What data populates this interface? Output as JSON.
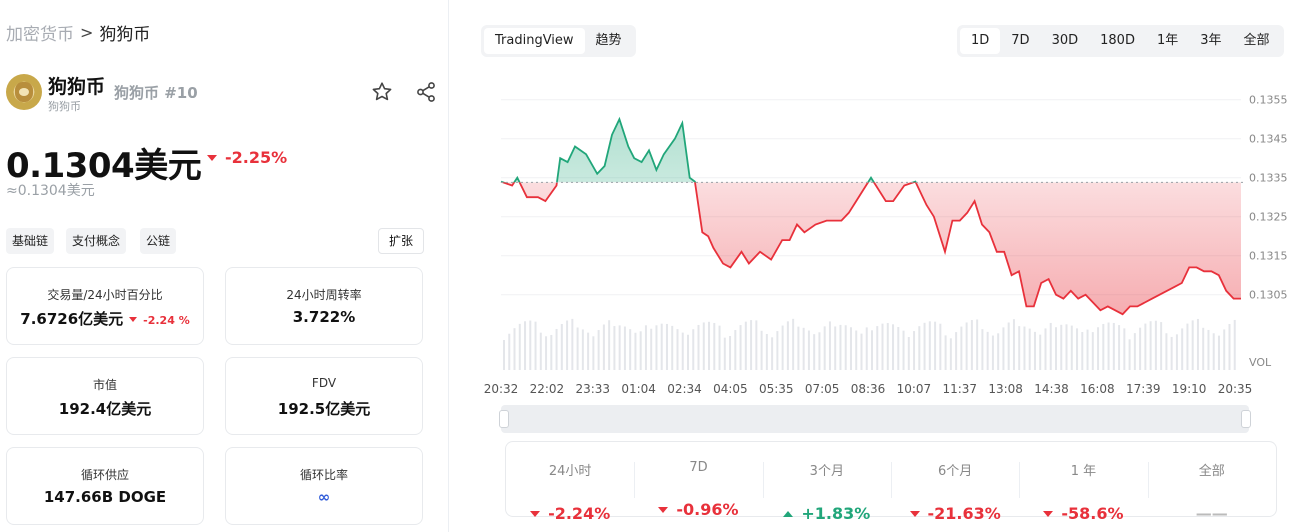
{
  "breadcrumb": {
    "root": "加密货币",
    "separator": ">",
    "current": "狗狗币"
  },
  "coin": {
    "name": "狗狗币",
    "sub_name": "狗狗币",
    "rank": "狗狗币 #10",
    "price": "0.1304美元",
    "change_24h": "-2.25%",
    "price_approx": "≈0.1304美元",
    "icons": {
      "favorite": "star-icon",
      "share": "share-icon"
    }
  },
  "tags": [
    "基础链",
    "支付概念",
    "公链"
  ],
  "expand_label": "扩张",
  "stats": {
    "volume_ratio": {
      "label": "交易量/24小时百分比",
      "value": "7.6726亿美元",
      "change": "-2.24 %"
    },
    "turnover": {
      "label": "24小时周转率",
      "value": "3.722%"
    },
    "market_cap": {
      "label": "市值",
      "value": "192.4亿美元"
    },
    "fdv": {
      "label": "FDV",
      "value": "192.5亿美元"
    },
    "circulating_supply": {
      "label": "循环供应",
      "value": "147.66B DOGE"
    },
    "circulating_ratio": {
      "label": "循环比率",
      "value": "∞"
    }
  },
  "chart_tabs": [
    "TradingView",
    "趋势"
  ],
  "ranges": [
    "1D",
    "7D",
    "30D",
    "180D",
    "1年",
    "3年",
    "全部"
  ],
  "active_range": "1D",
  "performance": [
    {
      "label": "24小时",
      "value": "-2.24%",
      "dir": "neg"
    },
    {
      "label": "7D",
      "value": "-0.96%",
      "dir": "neg"
    },
    {
      "label": "3个月",
      "value": "+1.83%",
      "dir": "pos"
    },
    {
      "label": "6个月",
      "value": "-21.63%",
      "dir": "neg"
    },
    {
      "label": "1 年",
      "value": "-58.6%",
      "dir": "neg"
    },
    {
      "label": "全部",
      "value": "——",
      "dir": "none"
    }
  ],
  "colors": {
    "negative": "#e8313b",
    "positive": "#21a67a"
  },
  "chart_data": {
    "type": "area",
    "x_ticks": [
      "20:32",
      "22:02",
      "23:33",
      "01:04",
      "02:34",
      "04:05",
      "05:35",
      "07:05",
      "08:36",
      "10:07",
      "11:37",
      "13:08",
      "14:38",
      "16:08",
      "17:39",
      "19:10",
      "20:35"
    ],
    "y_ticks": [
      "0.1355",
      "0.1345",
      "0.1335",
      "0.1325",
      "0.1315",
      "0.1305"
    ],
    "ylabel_volume": "VOL",
    "baseline": 0.13338,
    "ylim": [
      0.1298,
      0.1358
    ],
    "x_fraction": [
      0,
      0.015,
      0.022,
      0.035,
      0.05,
      0.06,
      0.075,
      0.08,
      0.09,
      0.1,
      0.115,
      0.13,
      0.14,
      0.15,
      0.16,
      0.172,
      0.18,
      0.19,
      0.2,
      0.21,
      0.22,
      0.235,
      0.245,
      0.255,
      0.262,
      0.272,
      0.28,
      0.287,
      0.3,
      0.31,
      0.325,
      0.335,
      0.35,
      0.365,
      0.38,
      0.39,
      0.4,
      0.41,
      0.425,
      0.44,
      0.45,
      0.46,
      0.47,
      0.48,
      0.49,
      0.5,
      0.52,
      0.53,
      0.545,
      0.56,
      0.57,
      0.575,
      0.585,
      0.6,
      0.61,
      0.62,
      0.63,
      0.64,
      0.65,
      0.66,
      0.67,
      0.68,
      0.69,
      0.7,
      0.71,
      0.72,
      0.73,
      0.74,
      0.75,
      0.76,
      0.77,
      0.78,
      0.79,
      0.8,
      0.81,
      0.82,
      0.83,
      0.84,
      0.85,
      0.86,
      0.87,
      0.88,
      0.89,
      0.9,
      0.91,
      0.92,
      0.93,
      0.94,
      0.95,
      0.96,
      0.97,
      0.98,
      0.99,
      1.0
    ],
    "values": [
      0.1334,
      0.1333,
      0.1335,
      0.133,
      0.133,
      0.1329,
      0.1333,
      0.134,
      0.1339,
      0.1343,
      0.1341,
      0.1336,
      0.1338,
      0.1346,
      0.135,
      0.1343,
      0.134,
      0.1339,
      0.1342,
      0.1337,
      0.1341,
      0.1345,
      0.1349,
      0.1335,
      0.1334,
      0.1321,
      0.132,
      0.1317,
      0.1313,
      0.1312,
      0.1316,
      0.1313,
      0.1316,
      0.1314,
      0.1319,
      0.1319,
      0.1323,
      0.1321,
      0.1323,
      0.1324,
      0.1324,
      0.1324,
      0.1326,
      0.1329,
      0.1332,
      0.1335,
      0.1329,
      0.1329,
      0.1333,
      0.1334,
      0.133,
      0.1328,
      0.1325,
      0.1316,
      0.1324,
      0.1324,
      0.1326,
      0.1329,
      0.1323,
      0.1321,
      0.1316,
      0.1316,
      0.131,
      0.1311,
      0.1302,
      0.1302,
      0.1308,
      0.1309,
      0.1305,
      0.1304,
      0.1306,
      0.1304,
      0.1305,
      0.1303,
      0.1301,
      0.1302,
      0.1301,
      0.13,
      0.1302,
      0.1302,
      0.1303,
      0.1304,
      0.1305,
      0.1306,
      0.1307,
      0.1308,
      0.1312,
      0.1312,
      0.1311,
      0.1311,
      0.131,
      0.1306,
      0.1304,
      0.1304
    ]
  }
}
